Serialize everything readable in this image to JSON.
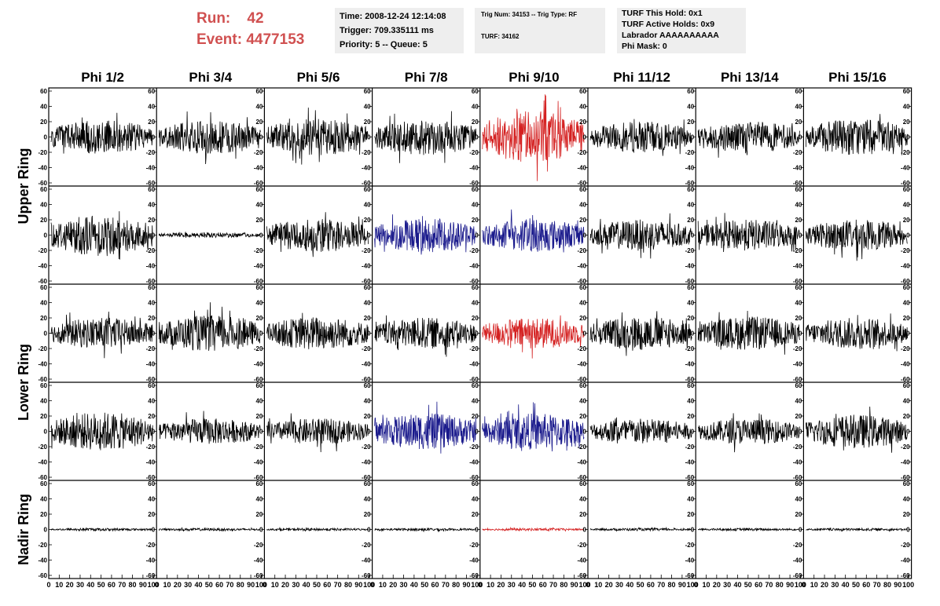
{
  "header": {
    "run_label": "Run:",
    "run_value": "42",
    "event_label": "Event:",
    "event_value": "4477153"
  },
  "info_panels": {
    "time": "Time: 2008-12-24 12:14:08",
    "trigger": "Trigger: 709.335111 ms",
    "priority": "Priority: 5 -- Queue: 5",
    "trig_num": "Trig Num: 34153 -- Trig Type: RF",
    "turf": "TURF: 34162",
    "turf_this_hold": "TURF This Hold: 0x1",
    "turf_active_holds": "TURF Active Holds: 0x9",
    "labrador": "Labrador AAAAAAAAAA",
    "phi_mask": "Phi Mask: 0"
  },
  "colors": {
    "run_text": "#d05050",
    "panel_bg": "#eeeeee",
    "trace_normal": "#000000",
    "trace_red": "#d42020",
    "trace_blue": "#1a1a8c"
  },
  "chart_data": {
    "type": "line",
    "columns": [
      "Phi 1/2",
      "Phi 3/4",
      "Phi 5/6",
      "Phi 7/8",
      "Phi 9/10",
      "Phi 11/12",
      "Phi 13/14",
      "Phi 15/16"
    ],
    "rings": [
      {
        "label": "Upper Ring",
        "rows": [
          0,
          1
        ]
      },
      {
        "label": "Lower Ring",
        "rows": [
          2,
          3
        ]
      },
      {
        "label": "Nadir Ring",
        "rows": [
          4
        ]
      }
    ],
    "ylim": [
      -60,
      60
    ],
    "yticks": [
      -60,
      -40,
      -20,
      0,
      20,
      40,
      60
    ],
    "xlim": [
      0,
      100
    ],
    "xticks": [
      0,
      10,
      20,
      30,
      40,
      50,
      60,
      70,
      80,
      90,
      100
    ],
    "samples": 260,
    "amplitude": [
      [
        13,
        13,
        14,
        14,
        20,
        12,
        12,
        14
      ],
      [
        16,
        2,
        13,
        13,
        13,
        12,
        12,
        12
      ],
      [
        12,
        14,
        13,
        12,
        12,
        13,
        13,
        12
      ],
      [
        15,
        10,
        10,
        14,
        14,
        10,
        10,
        13
      ],
      [
        1,
        1,
        1,
        1,
        1,
        1,
        1,
        1
      ]
    ],
    "trace_color": [
      [
        "n",
        "n",
        "n",
        "n",
        "r",
        "n",
        "n",
        "n"
      ],
      [
        "n",
        "n",
        "n",
        "b",
        "b",
        "n",
        "n",
        "n"
      ],
      [
        "n",
        "n",
        "n",
        "n",
        "r",
        "n",
        "n",
        "n"
      ],
      [
        "n",
        "n",
        "n",
        "b",
        "b",
        "n",
        "n",
        "n"
      ],
      [
        "n",
        "n",
        "n",
        "n",
        "r",
        "n",
        "n",
        "n"
      ]
    ]
  }
}
